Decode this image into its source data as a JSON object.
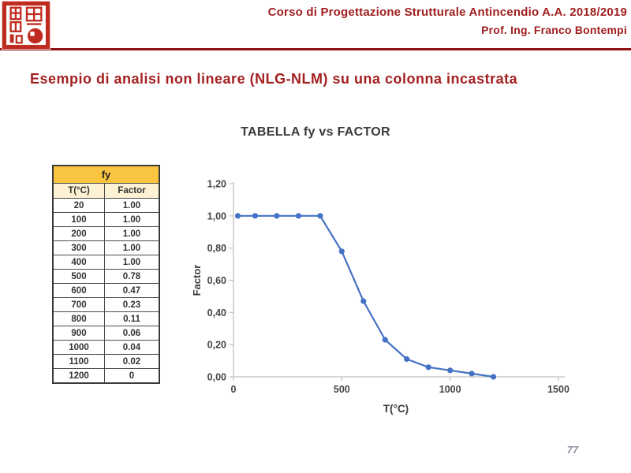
{
  "header": {
    "course_title": "Corso di Progettazione Strutturale Antincendio A.A. 2018/2019",
    "professor": "Prof. Ing. Franco Bontempi"
  },
  "slide": {
    "title": "Esempio di analisi non lineare (NLG-NLM) su una colonna incastrata",
    "page_number": "77"
  },
  "table": {
    "title": "fy",
    "columns": [
      "T(°C)",
      "Factor"
    ],
    "rows": [
      [
        "20",
        "1.00"
      ],
      [
        "100",
        "1.00"
      ],
      [
        "200",
        "1.00"
      ],
      [
        "300",
        "1.00"
      ],
      [
        "400",
        "1.00"
      ],
      [
        "500",
        "0.78"
      ],
      [
        "600",
        "0.47"
      ],
      [
        "700",
        "0.23"
      ],
      [
        "800",
        "0.11"
      ],
      [
        "900",
        "0.06"
      ],
      [
        "1000",
        "0.04"
      ],
      [
        "1100",
        "0.02"
      ],
      [
        "1200",
        "0"
      ]
    ]
  },
  "chart_data": {
    "type": "line",
    "title": "TABELLA fy vs FACTOR",
    "xlabel": "T(°C)",
    "ylabel": "Factor",
    "x": [
      20,
      100,
      200,
      300,
      400,
      500,
      600,
      700,
      800,
      900,
      1000,
      1100,
      1200
    ],
    "y": [
      1.0,
      1.0,
      1.0,
      1.0,
      1.0,
      0.78,
      0.47,
      0.23,
      0.11,
      0.06,
      0.04,
      0.02,
      0
    ],
    "xlim": [
      0,
      1500
    ],
    "ylim": [
      0,
      1.2
    ],
    "x_tick_values": [
      0,
      500,
      1000,
      1500
    ],
    "x_tick_labels": [
      "0",
      "500",
      "1000",
      "1500"
    ],
    "y_tick_values": [
      0,
      0.2,
      0.4,
      0.6,
      0.8,
      1.0,
      1.2
    ],
    "y_tick_labels": [
      "0,00",
      "0,20",
      "0,40",
      "0,60",
      "0,80",
      "1,00",
      "1,20"
    ],
    "grid": false,
    "legend": false,
    "marker": "circle"
  },
  "colors": {
    "accent_red": "#A32020",
    "rule_red": "#8E1212",
    "seal_red": "#C02B1F",
    "table_header_gold": "#F9C440",
    "table_subheader_cream": "#FDF2D3",
    "chart_line_blue": "#4472C4",
    "axis_gray": "#BFBFBF",
    "tick_text_gray": "#444444",
    "page_number_gray": "#8C93A2"
  }
}
